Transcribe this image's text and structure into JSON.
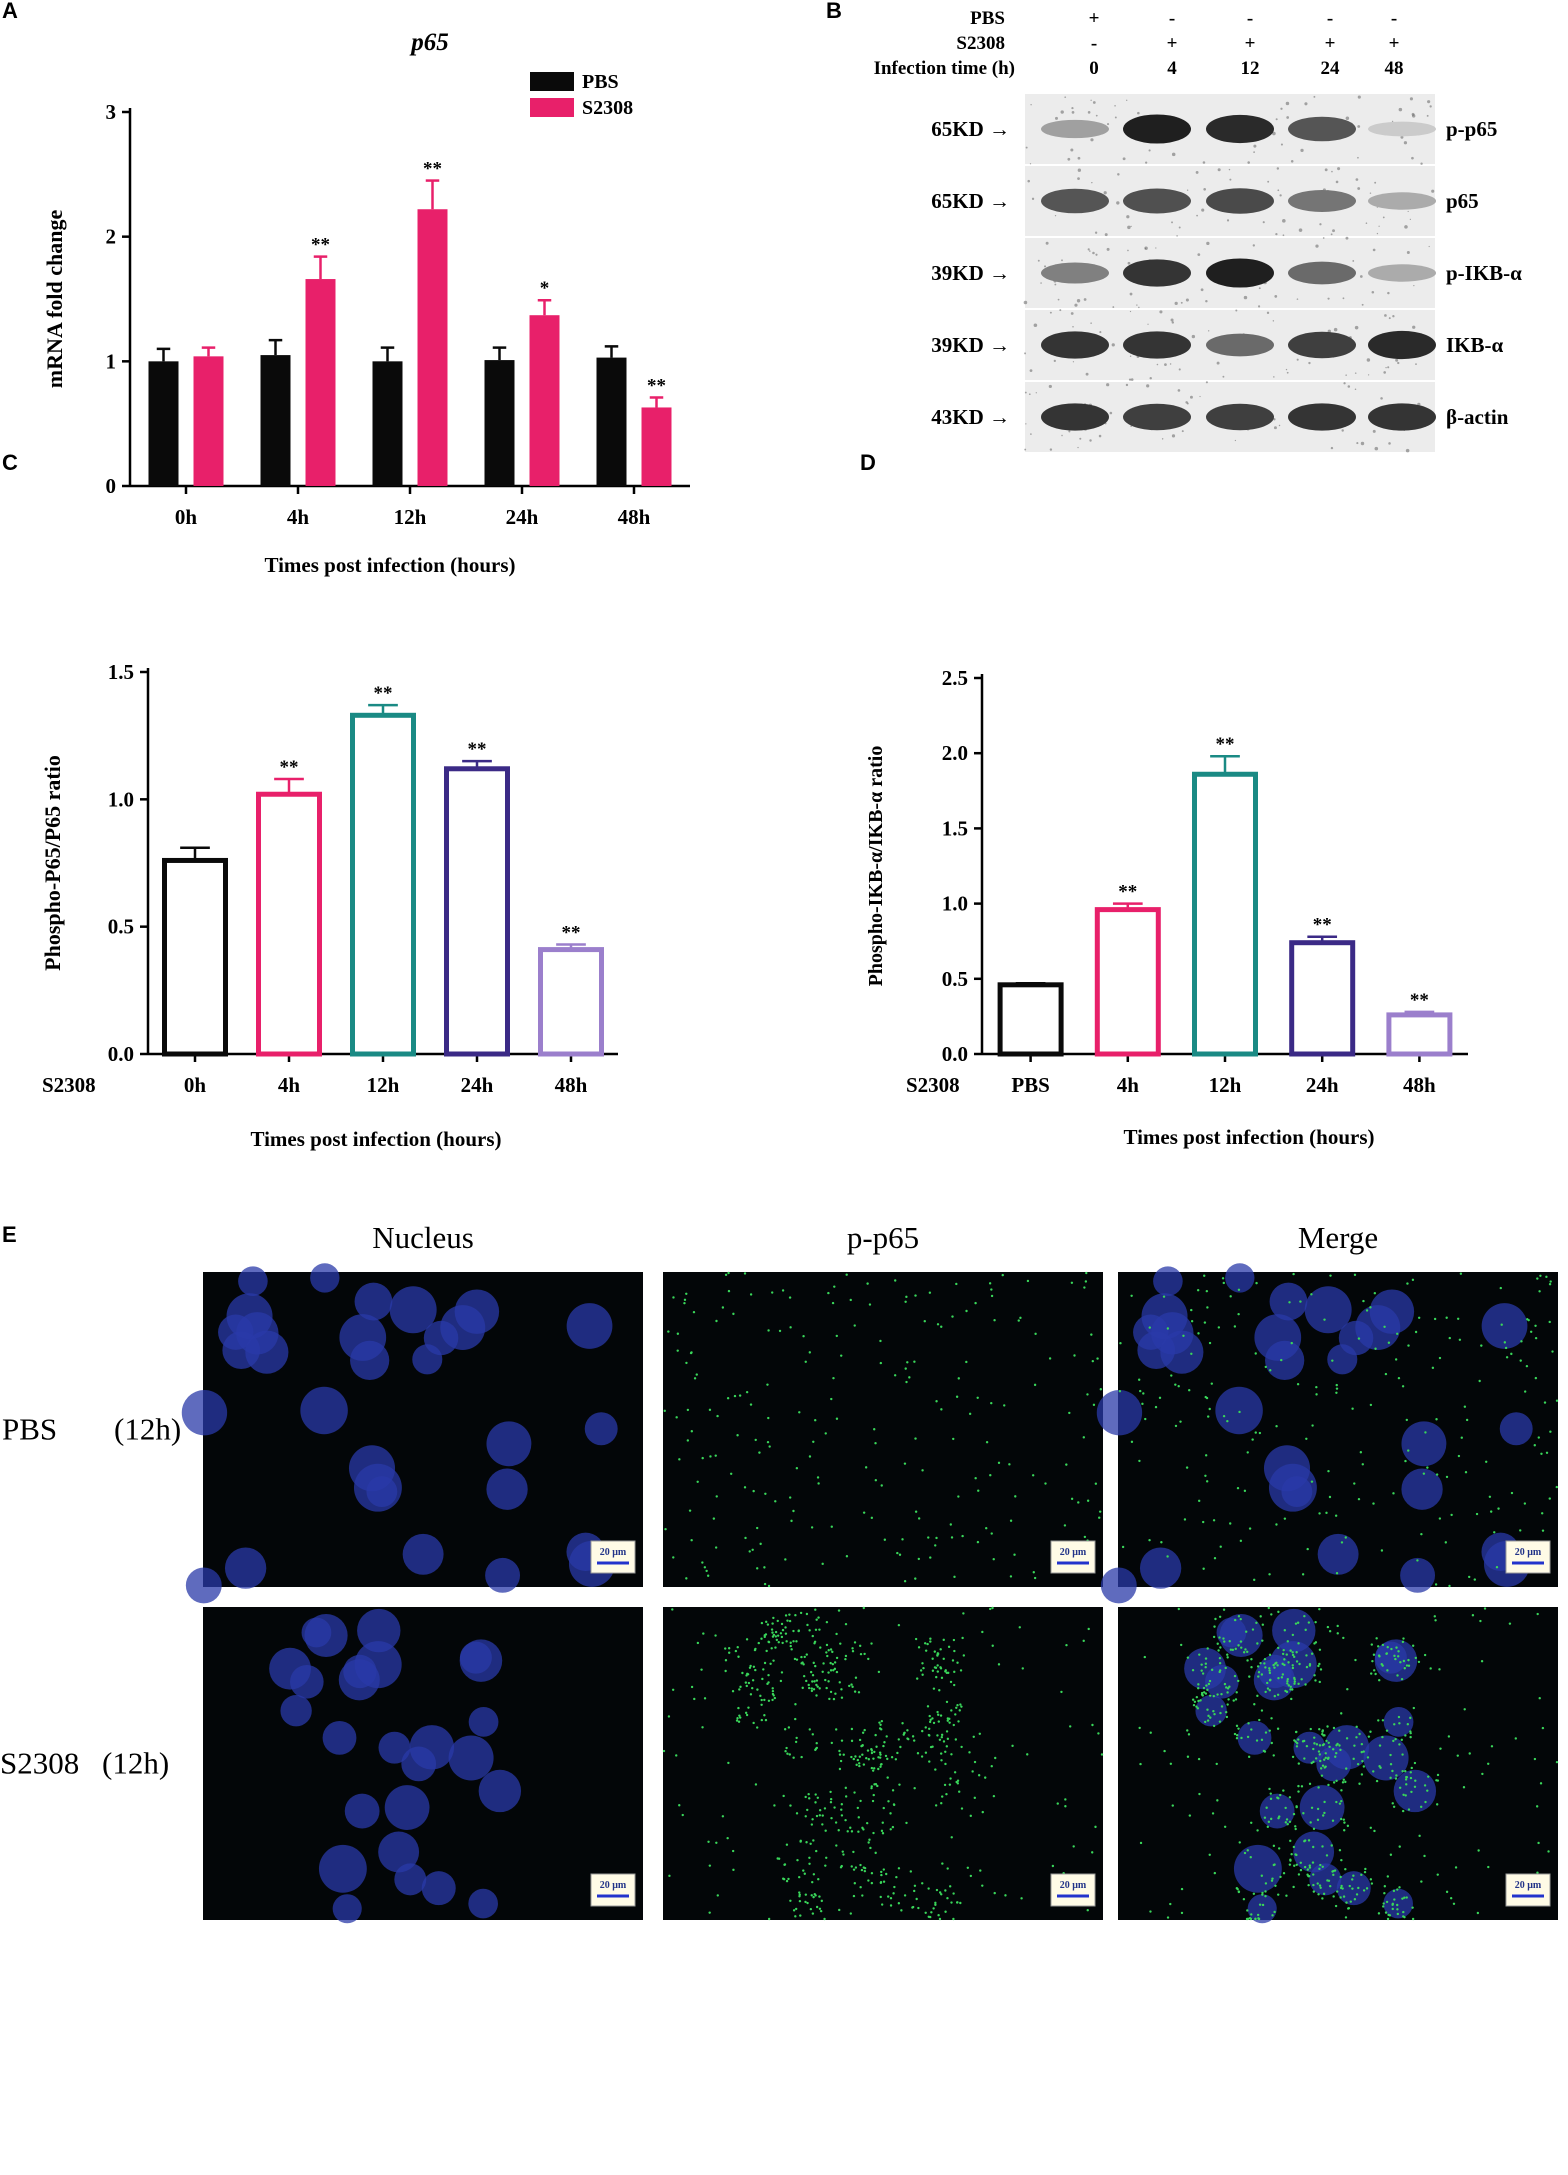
{
  "panel_labels": [
    "A",
    "B",
    "C",
    "D",
    "E"
  ],
  "chart_data": [
    {
      "type": "bar",
      "title": "p65",
      "xlabel": "Times post infection (hours)",
      "ylabel": "mRNA fold change",
      "categories": [
        "0h",
        "4h",
        "12h",
        "24h",
        "48h"
      ],
      "ylim": [
        0,
        3
      ],
      "yticks": [
        "0",
        "1",
        "2",
        "3"
      ],
      "legend_position": "top-right",
      "series": [
        {
          "name": "PBS",
          "color": "#0a0a0a",
          "values": [
            1.0,
            1.05,
            1.0,
            1.01,
            1.03
          ],
          "errors": [
            0.1,
            0.12,
            0.11,
            0.1,
            0.09
          ],
          "sig": [
            "",
            "",
            "",
            "",
            ""
          ]
        },
        {
          "name": "S2308",
          "color": "#e8206a",
          "values": [
            1.04,
            1.66,
            2.22,
            1.37,
            0.63
          ],
          "errors": [
            0.07,
            0.18,
            0.23,
            0.12,
            0.08
          ],
          "sig": [
            "",
            "**",
            "**",
            "*",
            "**"
          ]
        }
      ]
    },
    {
      "type": "bar",
      "title": "",
      "xlabel": "Times post infection (hours)",
      "ylabel": "Phospho-P65/P65 ratio",
      "row_label": "S2308",
      "categories": [
        "0h",
        "4h",
        "12h",
        "24h",
        "48h"
      ],
      "ylim": [
        0,
        1.5
      ],
      "yticks": [
        "0.0",
        "0.5",
        "1.0",
        "1.5"
      ],
      "values": [
        0.76,
        1.02,
        1.33,
        1.12,
        0.41
      ],
      "errors": [
        0.05,
        0.06,
        0.04,
        0.03,
        0.02
      ],
      "sig": [
        "",
        "**",
        "**",
        "**",
        "**"
      ],
      "colors": [
        "#0a0a0a",
        "#e8206a",
        "#1a8a84",
        "#3b2a86",
        "#9b7fcc"
      ],
      "fill": "none"
    },
    {
      "type": "bar",
      "title": "",
      "xlabel": "Times post infection (hours)",
      "ylabel": "Phospho-IKB-α/IKB-α ratio",
      "row_label": "S2308",
      "categories": [
        "PBS",
        "4h",
        "12h",
        "24h",
        "48h"
      ],
      "ylim": [
        0,
        2.5
      ],
      "yticks": [
        "0.0",
        "0.5",
        "1.0",
        "1.5",
        "2.0",
        "2.5"
      ],
      "values": [
        0.46,
        0.96,
        1.86,
        0.74,
        0.26
      ],
      "errors": [
        0.01,
        0.04,
        0.12,
        0.04,
        0.02
      ],
      "sig": [
        "",
        "**",
        "**",
        "**",
        "**"
      ],
      "colors": [
        "#0a0a0a",
        "#e8206a",
        "#1a8a84",
        "#3b2a86",
        "#9b7fcc"
      ],
      "fill": "none"
    }
  ],
  "blot": {
    "rows": [
      {
        "label": "PBS",
        "values": [
          "+",
          "-",
          "-",
          "-",
          "-"
        ]
      },
      {
        "label": "S2308",
        "values": [
          "-",
          "+",
          "+",
          "+",
          "+"
        ]
      },
      {
        "label": "Infection time (h)",
        "values": [
          "0",
          "4",
          "12",
          "24",
          "48"
        ]
      }
    ],
    "bands": [
      {
        "marker": "65KD →",
        "protein": "p-p65",
        "intensity": [
          0.35,
          0.95,
          0.9,
          0.7,
          0.15
        ]
      },
      {
        "marker": "65KD →",
        "protein": "p65",
        "intensity": [
          0.7,
          0.72,
          0.75,
          0.55,
          0.3
        ]
      },
      {
        "marker": "39KD →",
        "protein": "p-IKB-α",
        "intensity": [
          0.5,
          0.85,
          0.95,
          0.6,
          0.3
        ]
      },
      {
        "marker": "39KD →",
        "protein": "IKB-α",
        "intensity": [
          0.85,
          0.85,
          0.6,
          0.8,
          0.9
        ]
      },
      {
        "marker": "43KD →",
        "protein": "β-actin",
        "intensity": [
          0.85,
          0.8,
          0.8,
          0.85,
          0.85
        ]
      }
    ]
  },
  "microscopy": {
    "columns": [
      "Nucleus",
      "p-p65",
      "Merge"
    ],
    "rows": [
      {
        "label_a": "PBS",
        "label_b": "(12h)",
        "green_level": 0.2
      },
      {
        "label_a": "S2308",
        "label_b": "(12h)",
        "green_level": 0.85
      }
    ],
    "scale_bar": "20 μm"
  }
}
